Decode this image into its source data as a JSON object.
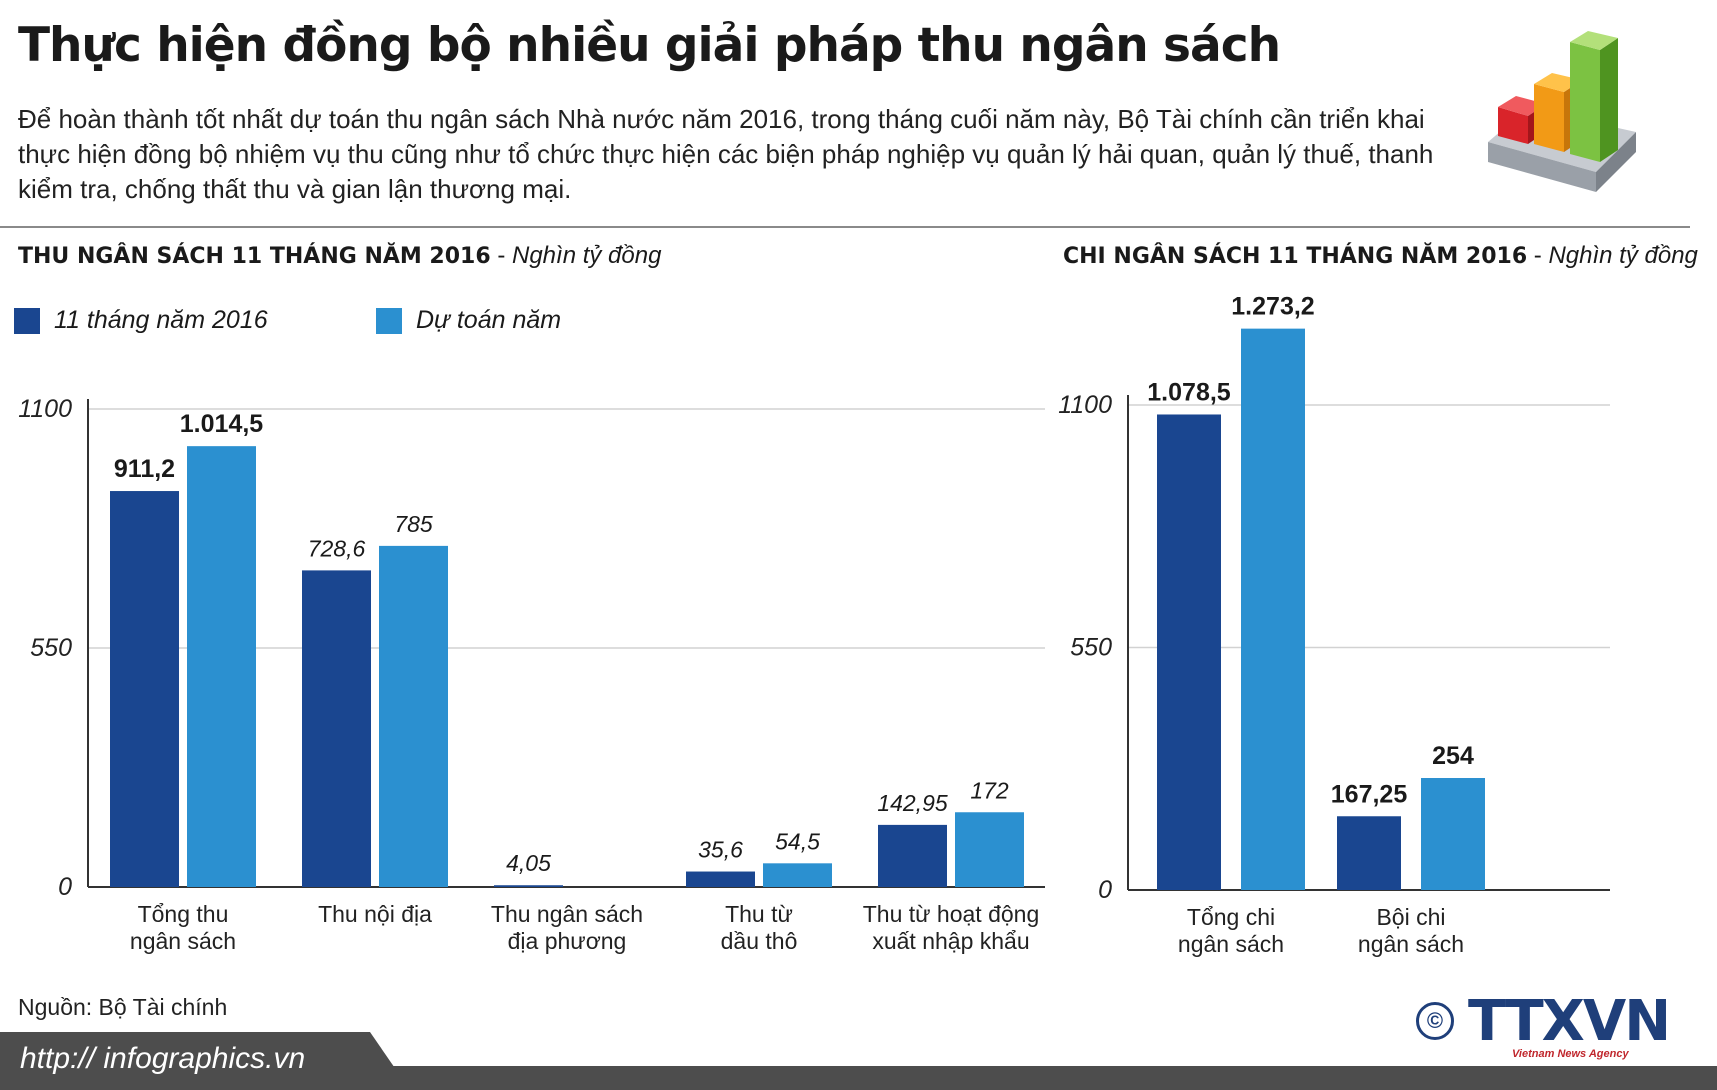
{
  "title": "Thực hiện đồng bộ nhiều giải pháp thu ngân sách",
  "intro": "Để hoàn thành tốt nhất dự toán thu ngân sách Nhà nước năm 2016, trong tháng cuối năm này, Bộ Tài chính cần triển khai thực hiện đồng bộ nhiệm vụ thu cũng như tổ chức thực hiện các biện pháp nghiệp vụ quản lý hải quan, quản lý thuế, thanh kiểm tra, chống thất thu và gian lận thương mại.",
  "colors": {
    "dark": "#1a4690",
    "light": "#2b90d0"
  },
  "legend": {
    "series1": "11 tháng năm 2016",
    "series2": "Dự toán năm"
  },
  "unit": "Nghìn tỷ đồng",
  "source": "Nguồn: Bộ Tài chính",
  "url": "http:// infographics.vn",
  "copyright": "©",
  "agency": "TTXVN",
  "agency_sub": "Vietnam News Agency",
  "logo_icon": "3d-bar-chart-icon",
  "chart_data": [
    {
      "type": "bar",
      "title": "THU NGÂN SÁCH 11 THÁNG NĂM 2016",
      "categories": [
        [
          "Tổng thu",
          "ngân sách"
        ],
        [
          "Thu nội địa"
        ],
        [
          "Thu ngân sách",
          "địa phương"
        ],
        [
          "Thu từ",
          "dầu thô"
        ],
        [
          "Thu từ hoạt động",
          "xuất nhập khẩu"
        ]
      ],
      "series": [
        {
          "name": "11 tháng năm 2016",
          "values": [
            911.2,
            728.6,
            4.05,
            35.6,
            142.95
          ],
          "labels": [
            "911,2",
            "728,6",
            "4,05",
            "35,6",
            "142,95"
          ]
        },
        {
          "name": "Dự toán năm",
          "values": [
            1014.5,
            785,
            null,
            54.5,
            172
          ],
          "labels": [
            "1.014,5",
            "785",
            "",
            "54,5",
            "172"
          ]
        }
      ],
      "y_ticks": [
        "0",
        "550",
        "1100"
      ],
      "ylim": [
        0,
        1100
      ],
      "grid": true
    },
    {
      "type": "bar",
      "title": "CHI NGÂN SÁCH 11 THÁNG NĂM 2016",
      "categories": [
        [
          "Tổng chi",
          "ngân sách"
        ],
        [
          "Bội chi",
          "ngân sách"
        ]
      ],
      "series": [
        {
          "name": "11 tháng năm 2016",
          "values": [
            1078.5,
            167.25
          ],
          "labels": [
            "1.078,5",
            "167,25"
          ]
        },
        {
          "name": "Dự toán năm",
          "values": [
            1273.2,
            254
          ],
          "labels": [
            "1.273,2",
            "254"
          ]
        }
      ],
      "y_ticks": [
        "0",
        "550",
        "1100"
      ],
      "ylim": [
        0,
        1100
      ],
      "grid": true
    }
  ]
}
